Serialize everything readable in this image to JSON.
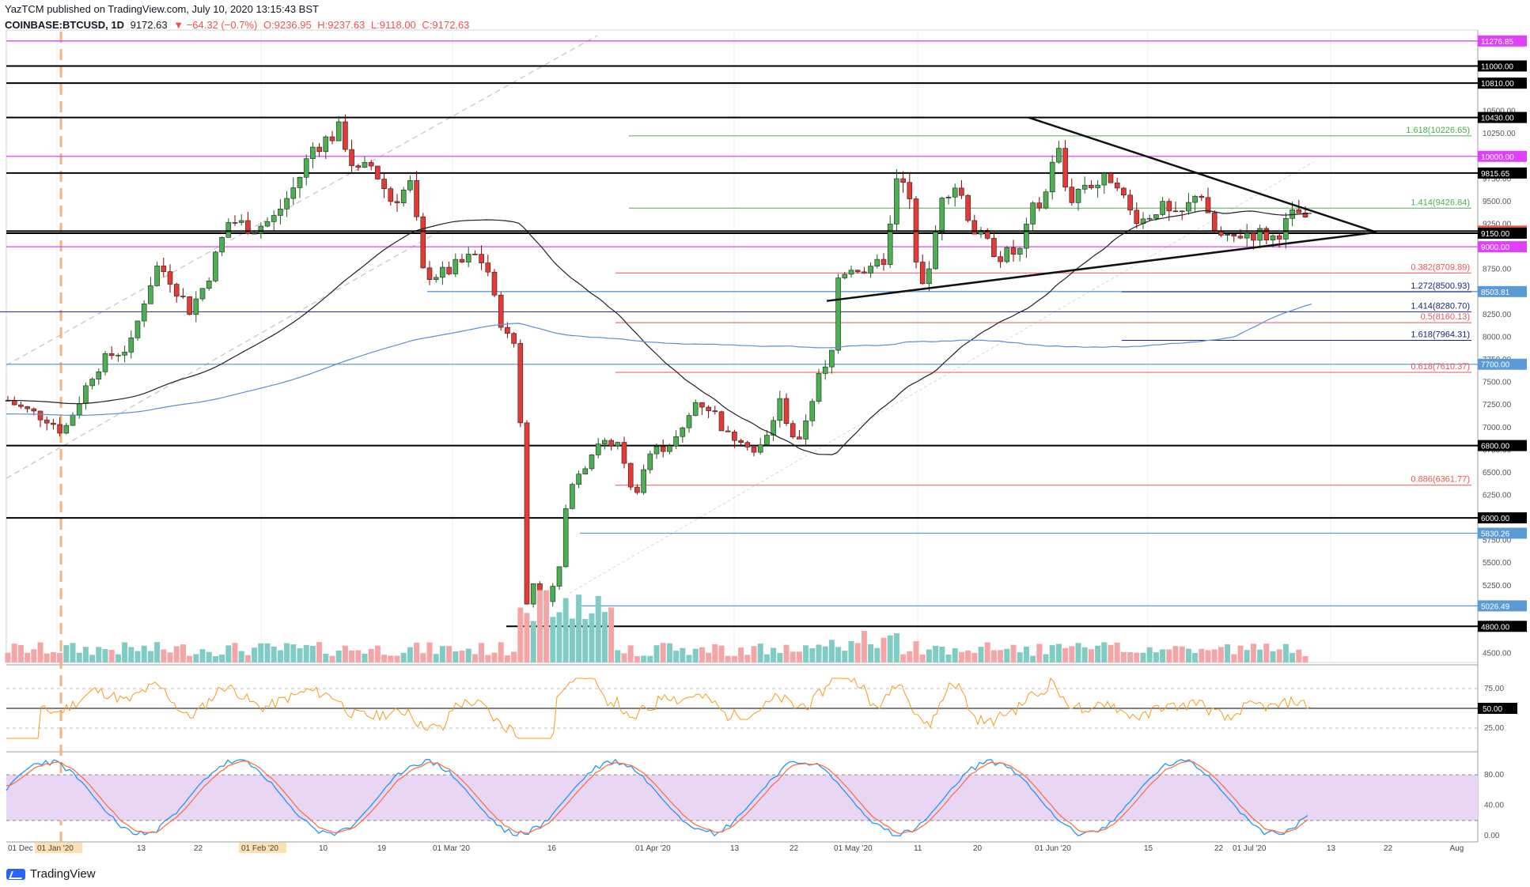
{
  "header": {
    "publisher": "YazTCM published on TradingView.com, July 10, 2020 13:15:43 BST",
    "symbol": "COINBASE:BTCUSD, 1D",
    "price": "9172.63",
    "change": "▼ −64.32 (−0.7%)",
    "o": "O:9236.95",
    "h": "H:9237.63",
    "l": "L:9118.00",
    "c": "C:9172.63"
  },
  "brand": "TradingView",
  "chart_data": [
    {
      "type": "candlestick",
      "title": "COINBASE:BTCUSD, 1D",
      "ylim": [
        4400,
        11380
      ],
      "y_ticks": [
        4500,
        4800,
        5026.49,
        5250,
        5500,
        5750,
        6000,
        6250,
        6500,
        6750,
        7000,
        7250,
        7500,
        7750,
        8000,
        8250,
        8500,
        8750,
        9000,
        9250,
        9500,
        9750,
        10000,
        10250,
        10500,
        11000
      ],
      "x_tick_labels": [
        "01 Dec '19",
        "01 Jan '20",
        "13",
        "22",
        "01 Feb '20",
        "10",
        "19",
        "01 Mar '20",
        "16",
        "01 Apr '20",
        "13",
        "22",
        "01 May '20",
        "11",
        "20",
        "01 Jun '20",
        "15",
        "22",
        "01 Jul '20",
        "13",
        "22",
        "Aug"
      ],
      "horizontal_levels": [
        {
          "value": 11276.85,
          "label": "11276.85",
          "color": "#e040fb"
        },
        {
          "value": 11000,
          "label": "11000.00",
          "color": "#000000"
        },
        {
          "value": 10810,
          "label": "10810.00",
          "color": "#000000"
        },
        {
          "value": 10430,
          "label": "10430.00",
          "color": "#000000"
        },
        {
          "value": 10000,
          "label": "10000.00",
          "color": "#e040fb"
        },
        {
          "value": 9815.65,
          "label": "9815.65",
          "color": "#000000"
        },
        {
          "value": 9172.63,
          "label": "9172.63",
          "color": "#ef5350"
        },
        {
          "value": 9150,
          "label": "9150.00",
          "color": "#000000"
        },
        {
          "value": 9000,
          "label": "9000.00",
          "color": "#e040fb"
        },
        {
          "value": 8503.81,
          "label": "8503.81",
          "color": "#5b9bd5"
        },
        {
          "value": 7700,
          "label": "7700.00",
          "color": "#5b9bd5"
        },
        {
          "value": 6800,
          "label": "6800.00",
          "color": "#000000"
        },
        {
          "value": 6000,
          "label": "6000.00",
          "color": "#000000"
        },
        {
          "value": 5830.26,
          "label": "5830.26",
          "color": "#5b9bd5"
        },
        {
          "value": 5026.49,
          "label": "5026.49",
          "color": "#5b9bd5"
        },
        {
          "value": 4800,
          "label": "4800.00",
          "color": "#000000"
        }
      ],
      "fib_levels": [
        {
          "value": 10226.65,
          "label": "1.618(10226.65)",
          "color": "#4caf50"
        },
        {
          "value": 9426.84,
          "label": "1.414(9426.84)",
          "color": "#4caf50"
        },
        {
          "value": 8709.89,
          "label": "0.382(8709.89)",
          "color": "#ef5350"
        },
        {
          "value": 8500.93,
          "label": "1.272(8500.93)",
          "color": "#1a237e"
        },
        {
          "value": 8280.7,
          "label": "1.414(8280.70)",
          "color": "#1a237e"
        },
        {
          "value": 8160.13,
          "label": "0.5(8160.13)",
          "color": "#ef5350"
        },
        {
          "value": 7964.31,
          "label": "1.618(7964.31)",
          "color": "#1a237e"
        },
        {
          "value": 7610.37,
          "label": "0.618(7610.37)",
          "color": "#ef5350"
        },
        {
          "value": 6361.77,
          "label": "0.886(6361.77)",
          "color": "#ef5350"
        }
      ],
      "last_price": 9172.63
    },
    {
      "type": "line",
      "title": "RSI",
      "ylim": [
        0,
        100
      ],
      "y_ticks": [
        25,
        50,
        75
      ],
      "last_value_label": "50.00"
    },
    {
      "type": "line",
      "title": "Stoch RSI",
      "ylim": [
        0,
        100
      ],
      "y_ticks": [
        0,
        40,
        80
      ]
    }
  ]
}
